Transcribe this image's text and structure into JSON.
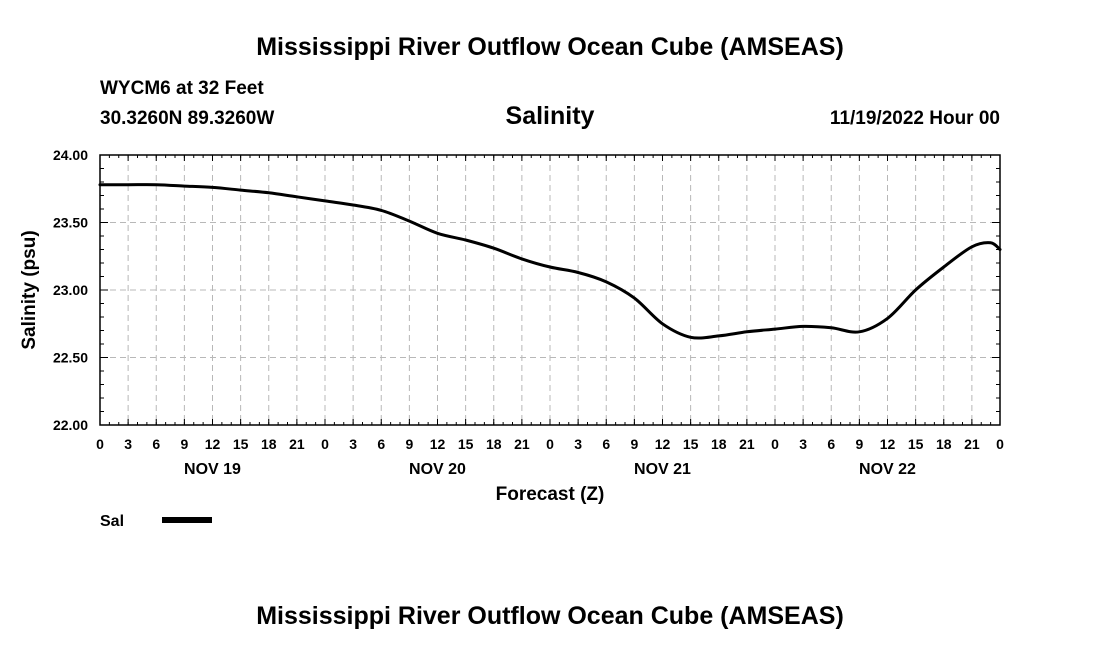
{
  "header": {
    "title": "Mississippi River Outflow Ocean Cube (AMSEAS)",
    "station": "WYCM6 at 32 Feet",
    "coords": "30.3260N  89.3260W",
    "chart_title": "Salinity",
    "datetime": "11/19/2022 Hour 00"
  },
  "footer": {
    "title": "Mississippi River Outflow Ocean Cube (AMSEAS)"
  },
  "legend": {
    "label": "Sal"
  },
  "colors": {
    "line": "#000000",
    "grid": "#b8b8b8"
  },
  "chart_data": {
    "type": "line",
    "title": "Salinity",
    "xlabel": "Forecast (Z)",
    "ylabel": "Salinity (psu)",
    "xlim": [
      0,
      96
    ],
    "ylim": [
      22.0,
      24.0
    ],
    "grid": true,
    "y_ticks": [
      "22.00",
      "22.50",
      "23.00",
      "23.50",
      "24.00"
    ],
    "x_tick_labels": [
      "0",
      "3",
      "6",
      "9",
      "12",
      "15",
      "18",
      "21",
      "0",
      "3",
      "6",
      "9",
      "12",
      "15",
      "18",
      "21",
      "0",
      "3",
      "6",
      "9",
      "12",
      "15",
      "18",
      "21",
      "0",
      "3",
      "6",
      "9",
      "12",
      "15",
      "18",
      "21",
      "0"
    ],
    "day_labels": [
      {
        "label": "NOV 19",
        "hour": 12
      },
      {
        "label": "NOV 20",
        "hour": 36
      },
      {
        "label": "NOV 21",
        "hour": 60
      },
      {
        "label": "NOV 22",
        "hour": 84
      }
    ],
    "series": [
      {
        "name": "Sal",
        "x": [
          0,
          3,
          6,
          9,
          12,
          15,
          18,
          21,
          24,
          27,
          30,
          33,
          36,
          39,
          42,
          45,
          48,
          51,
          54,
          57,
          60,
          63,
          66,
          69,
          72,
          75,
          78,
          81,
          84,
          87,
          90,
          93,
          95,
          96
        ],
        "values": [
          23.78,
          23.78,
          23.78,
          23.77,
          23.76,
          23.74,
          23.72,
          23.69,
          23.66,
          23.63,
          23.59,
          23.51,
          23.42,
          23.37,
          23.31,
          23.23,
          23.17,
          23.13,
          23.06,
          22.94,
          22.75,
          22.65,
          22.66,
          22.69,
          22.71,
          22.73,
          22.72,
          22.69,
          22.79,
          23.0,
          23.17,
          23.32,
          23.35,
          23.3
        ]
      }
    ]
  }
}
